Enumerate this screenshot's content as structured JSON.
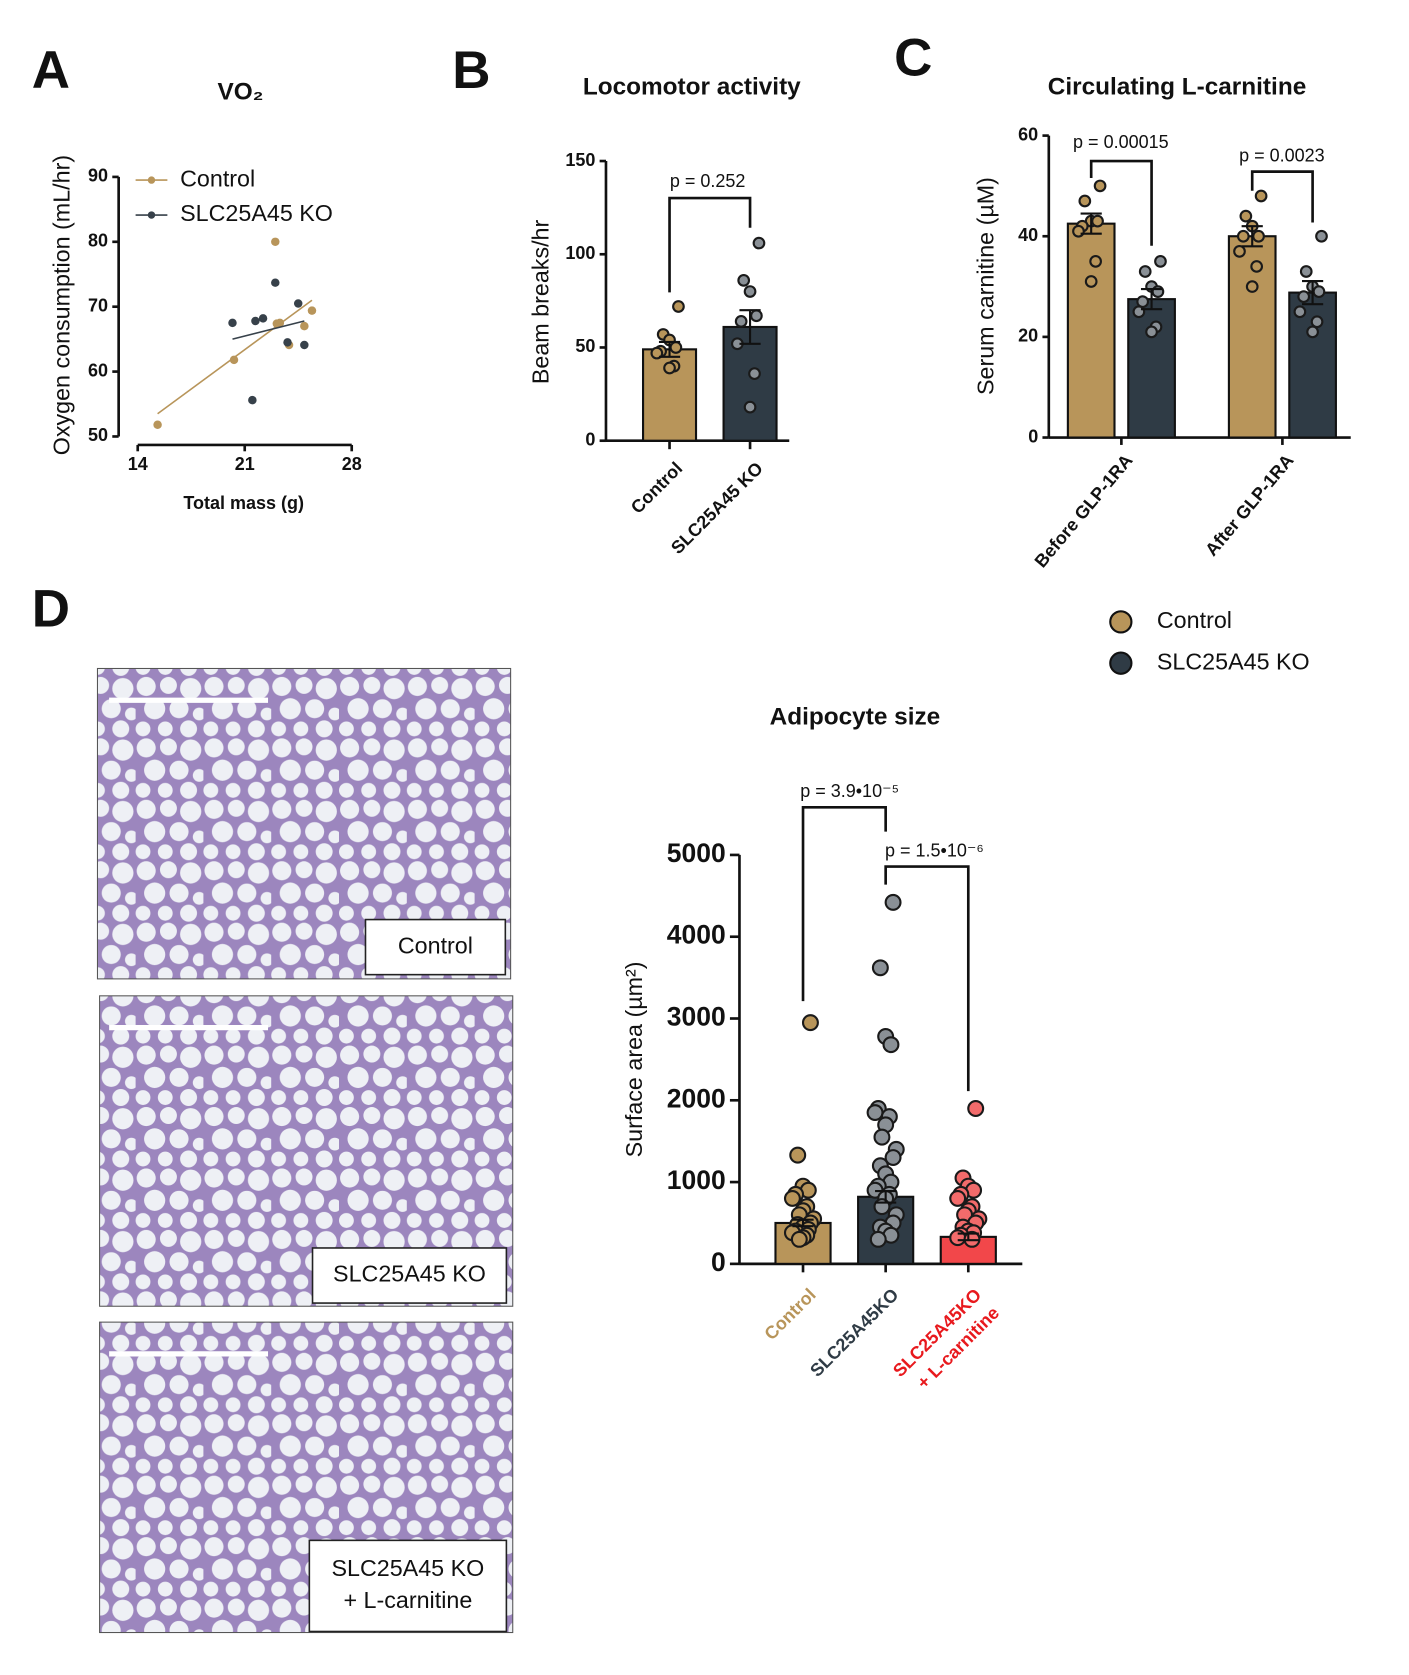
{
  "panels": [
    "A",
    "B",
    "C",
    "D"
  ],
  "micrographs": {
    "labels": [
      "Control",
      "SLC25A45 KO",
      [
        "SLC25A45 KO",
        "+  L-carnitine"
      ]
    ]
  },
  "chart_data": [
    {
      "type": "scatter",
      "title": "VO₂",
      "x_label": "Total mass (g)",
      "y_label": "Oxygen consumption (mL/hr)",
      "xlim": [
        14,
        28
      ],
      "xticks": [
        14,
        21,
        28
      ],
      "ylim": [
        50,
        90
      ],
      "yticks": [
        50,
        60,
        70,
        80,
        90
      ],
      "legend": "top-left",
      "series": [
        {
          "name": "Control",
          "color": "#b8955a",
          "x": [
            15.3,
            20.3,
            23.0,
            23.1,
            23.3,
            23.9,
            24.9,
            25.4
          ],
          "y": [
            51.8,
            61.8,
            80,
            67.4,
            67.5,
            64.1,
            67,
            69.4
          ],
          "fit_x": [
            15.3,
            25.4
          ],
          "fit_y": [
            53.5,
            71.0
          ]
        },
        {
          "name": "SLC25A45 KO",
          "color": "#37414a",
          "x": [
            20.2,
            21.5,
            21.7,
            22.2,
            23.0,
            23.8,
            24.5,
            24.9
          ],
          "y": [
            67.5,
            55.6,
            67.8,
            68.2,
            73.7,
            64.5,
            70.5,
            64.1
          ],
          "fit_x": [
            20.2,
            24.9
          ],
          "fit_y": [
            65.0,
            67.8
          ]
        }
      ]
    },
    {
      "type": "bar",
      "title": "Locomotor activity",
      "y_label": "Beam breaks/hr",
      "categories": [
        "Control",
        "SLC25A45 KO"
      ],
      "values": [
        49,
        61
      ],
      "errors": [
        4,
        9
      ],
      "colors": [
        "#b8955a",
        "#2f3b45"
      ],
      "points": [
        [
          72,
          57,
          54,
          50,
          48,
          47,
          40,
          39
        ],
        [
          106,
          86,
          80,
          67,
          64,
          52,
          36,
          18
        ]
      ],
      "ylim": [
        0,
        150
      ],
      "yticks": [
        0,
        50,
        100,
        150
      ],
      "annotations": [
        "p = 0.252"
      ]
    },
    {
      "type": "grouped_bar",
      "title": "Circulating L-carnitine",
      "y_label": "Serum carnitine  (µM)",
      "categories": [
        "Before GLP-1RA",
        "After GLP-1RA"
      ],
      "ylim": [
        0,
        60
      ],
      "yticks": [
        0,
        20,
        40,
        60
      ],
      "legend": "bottom",
      "series": [
        {
          "name": "Control",
          "color": "#b8955a",
          "values": [
            42.5,
            40
          ],
          "errors": [
            2,
            2
          ],
          "points": [
            [
              50,
              47,
              43,
              43,
              42,
              41,
              35,
              31
            ],
            [
              48,
              44,
              42,
              40,
              40,
              37,
              34,
              30
            ]
          ]
        },
        {
          "name": "SLC25A45 KO",
          "color": "#2f3b45",
          "values": [
            27.5,
            28.8
          ],
          "errors": [
            2,
            2.3
          ],
          "points": [
            [
              35,
              33,
              30,
              29,
              27,
              25,
              22,
              21
            ],
            [
              40,
              33,
              30,
              29,
              28,
              25,
              23,
              21
            ]
          ]
        }
      ],
      "annotations": [
        "p = 0.00015",
        "p = 0.0023"
      ]
    },
    {
      "type": "bar",
      "title": "Adipocyte size",
      "y_label": "Surface area (µm²)",
      "categories": [
        "Control",
        "SLC25A45KO",
        [
          "SLC25A45KO",
          "+ L-carnitine"
        ]
      ],
      "values": [
        500,
        820,
        330
      ],
      "errors": [
        40,
        70,
        40
      ],
      "colors": [
        "#b8955a",
        "#2f3b45",
        "#f2474a"
      ],
      "label_colors": [
        "#b8955a",
        "#2f3b45",
        "#e8191d"
      ],
      "points": [
        [
          2950,
          1330,
          950,
          900,
          850,
          800,
          700,
          650,
          600,
          550,
          500,
          480,
          450,
          420,
          400,
          380,
          350,
          320,
          300
        ],
        [
          4420,
          3620,
          2780,
          2680,
          1900,
          1850,
          1800,
          1700,
          1550,
          1400,
          1300,
          1200,
          1100,
          1000,
          950,
          900,
          850,
          800,
          700,
          600,
          500,
          450,
          400,
          350,
          300
        ],
        [
          1900,
          1050,
          950,
          900,
          850,
          800,
          700,
          650,
          600,
          550,
          500,
          450,
          400,
          380,
          350,
          320,
          300
        ]
      ],
      "ylim": [
        0,
        5000
      ],
      "yticks": [
        0,
        1000,
        2000,
        3000,
        4000,
        5000
      ],
      "annotations": [
        "p = 3.9•10⁻⁵",
        "p = 1.5•10⁻⁶"
      ]
    }
  ]
}
